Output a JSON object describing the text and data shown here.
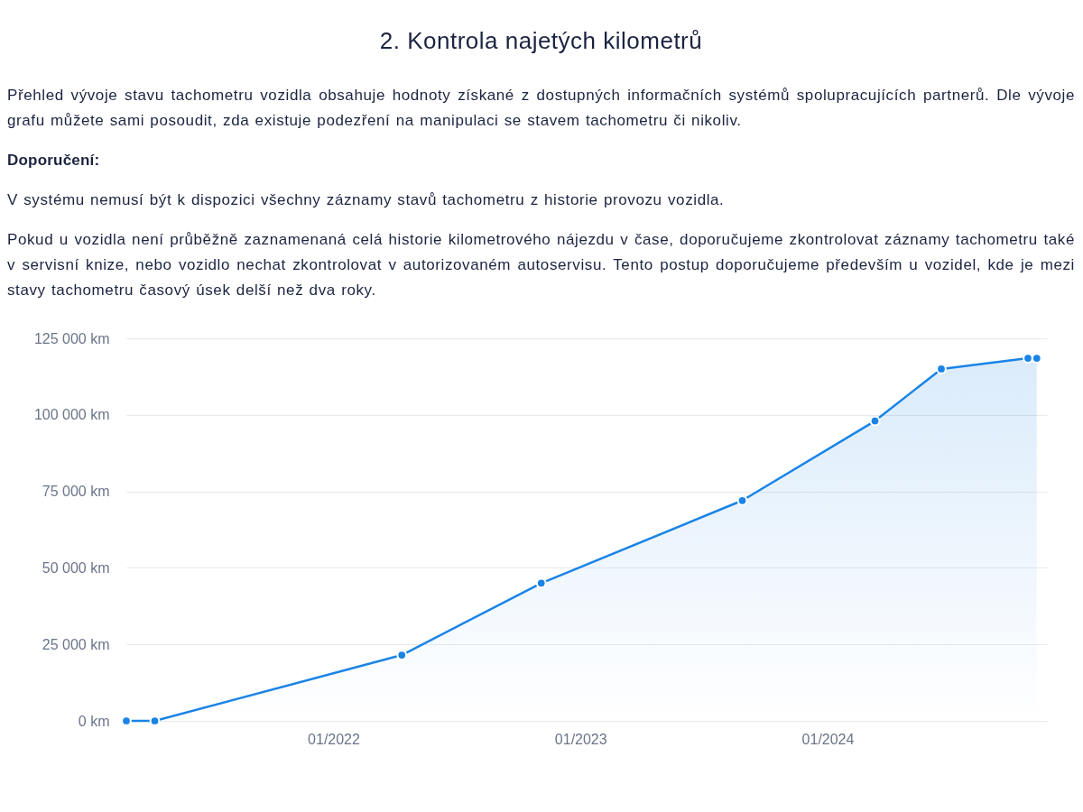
{
  "chart_data": {
    "type": "area",
    "title": "2. Kontrola najetých kilometrů",
    "subtitle": "Přehled vývoje stavu tachometru vozidla obsahuje hodnoty získané z dostupných informačních systémů spolupracujících partnerů. Dle vývoje grafu můžete sami posoudit, zda existuje podezření na manipulaci se stavem tachometru či nikoliv.",
    "annotations": [
      "Doporučení:",
      "V systému nemusí být k dispozici všechny záznamy stavů tachometru z historie provozu vozidla.",
      "Pokud u vozidla není průběžně zaznamenaná celá historie kilometrového nájezdu v čase, doporučujeme zkontrolovat záznamy tachometru také v servisní knize, nebo vozidlo nechat zkontrolovat v autorizovaném autoservisu. Tento postup doporučujeme především u vozidel, kde je mezi stavy tachometru časový úsek delší než dva roky."
    ],
    "x": [
      "2021-03-01",
      "2021-04-12",
      "2022-04-12",
      "2022-11-04",
      "2023-08-28",
      "2024-03-11",
      "2024-06-17",
      "2024-10-23",
      "2024-11-05"
    ],
    "series": [
      {
        "color": "#1a84e6",
        "values": [
          0,
          0,
          21500,
          45000,
          72000,
          98000,
          115000,
          118500,
          118500
        ]
      }
    ],
    "xlim": [
      "2021-03-01",
      "2024-11-20"
    ],
    "xticks": [
      {
        "value": "2022-01-01",
        "label": "01/2022"
      },
      {
        "value": "2023-01-01",
        "label": "01/2023"
      },
      {
        "value": "2024-01-01",
        "label": "01/2024"
      }
    ],
    "ylim": [
      0,
      125000
    ],
    "yticks": [
      {
        "value": 0,
        "label": "0 km"
      },
      {
        "value": 25000,
        "label": "25 000 km"
      },
      {
        "value": 50000,
        "label": "50 000 km"
      },
      {
        "value": 75000,
        "label": "75 000 km"
      },
      {
        "value": 100000,
        "label": "100 000 km"
      },
      {
        "value": 125000,
        "label": "125 000 km"
      }
    ],
    "grid": "y",
    "marker": "circle"
  }
}
